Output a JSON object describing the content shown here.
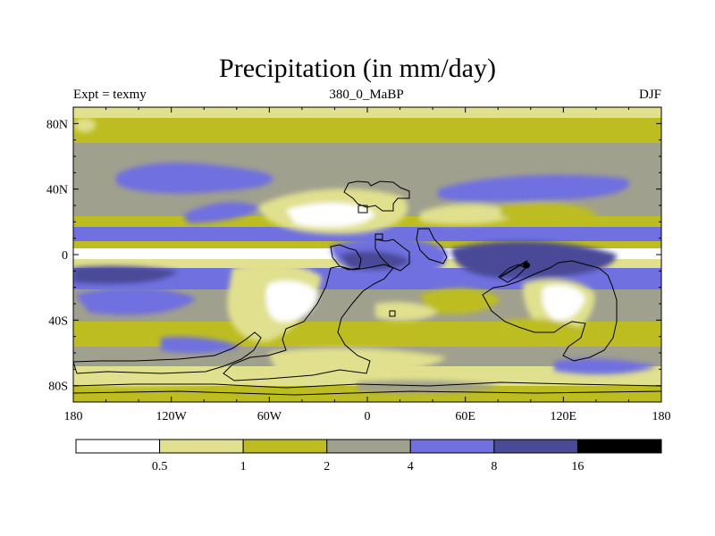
{
  "title": "Precipitation (in mm/day)",
  "subtitle_left": "Expt = texmy",
  "subtitle_center": "380_0_MaBP",
  "subtitle_right": "DJF",
  "map": {
    "lon_range": [
      -180,
      180
    ],
    "lat_range": [
      -90,
      90
    ],
    "y_ticks": [
      {
        "lat": 80,
        "label": "80N"
      },
      {
        "lat": 40,
        "label": "40N"
      },
      {
        "lat": 0,
        "label": "0"
      },
      {
        "lat": -40,
        "label": "40S"
      },
      {
        "lat": -80,
        "label": "80S"
      }
    ],
    "x_ticks": [
      {
        "lon": -180,
        "label": "180"
      },
      {
        "lon": -120,
        "label": "120W"
      },
      {
        "lon": -60,
        "label": "60W"
      },
      {
        "lon": 0,
        "label": "0"
      },
      {
        "lon": 60,
        "label": "60E"
      },
      {
        "lon": 120,
        "label": "120E"
      },
      {
        "lon": 180,
        "label": "180"
      }
    ]
  },
  "colorbar": {
    "colors": [
      "#ffffff",
      "#e0e08e",
      "#bdbd22",
      "#a0a08e",
      "#7070e0",
      "#4a4a98",
      "#000000"
    ],
    "labels": [
      "0.5",
      "1",
      "2",
      "4",
      "8",
      "16"
    ]
  }
}
